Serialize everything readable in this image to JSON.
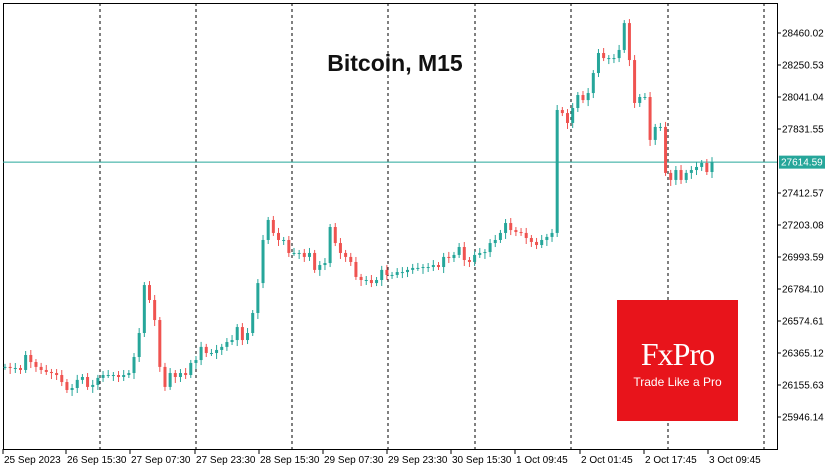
{
  "chart_data": {
    "type": "candlestick",
    "title": "Bitcoin, M15",
    "current_price": "27614.59",
    "y_ticks": [
      "28460.02",
      "28250.53",
      "28041.04",
      "27831.55",
      "27614.59",
      "27412.57",
      "27203.08",
      "26993.59",
      "26784.10",
      "26574.61",
      "26365.12",
      "26155.63",
      "25946.14"
    ],
    "x_ticks": [
      "25 Sep 2023",
      "26 Sep 15:30",
      "27 Sep 07:30",
      "27 Sep 23:30",
      "28 Sep 15:30",
      "29 Sep 07:30",
      "29 Sep 23:30",
      "30 Sep 15:30",
      "1 Oct 09:45",
      "2 Oct 01:45",
      "2 Oct 17:45",
      "3 Oct 09:45"
    ],
    "closes": [
      26274,
      26267,
      26267,
      26254,
      26352,
      26306,
      26274,
      26254,
      26241,
      26234,
      26221,
      26175,
      26123,
      26136,
      26189,
      26208,
      26143,
      26156,
      26202,
      26221,
      26221,
      26221,
      26208,
      26221,
      26234,
      26339,
      26496,
      26810,
      26712,
      26581,
      26274,
      26143,
      26234,
      26208,
      26234,
      26221,
      26300,
      26319,
      26405,
      26365,
      26365,
      26385,
      26405,
      26437,
      26450,
      26535,
      26450,
      26496,
      26627,
      26823,
      27105,
      27236,
      27151,
      27105,
      27105,
      27020,
      27020,
      27020,
      26994,
      27020,
      26909,
      26941,
      26954,
      27190,
      27085,
      27020,
      26994,
      26961,
      26863,
      26843,
      26843,
      26823,
      26843,
      26909,
      26876,
      26876,
      26895,
      26895,
      26909,
      26922,
      26922,
      26928,
      26928,
      26941,
      26928,
      26994,
      26987,
      27007,
      27059,
      26974,
      26961,
      27007,
      27020,
      27026,
      27085,
      27105,
      27151,
      27216,
      27170,
      27157,
      27151,
      27118,
      27092,
      27072,
      27105,
      27125,
      27151,
      27956,
      27936,
      27871,
      27969,
      28054,
      28021,
      28067,
      28198,
      28329,
      28296,
      28296,
      28296,
      28349,
      28525,
      28283,
      28002,
      28041,
      28041,
      27760,
      27845,
      27845,
      27544,
      27498,
      27563,
      27498,
      27544,
      27563,
      27583,
      27609,
      27550,
      27614.59
    ],
    "colors": {
      "up": "#26a69a",
      "down": "#ef5350",
      "price_line": "#26a69a",
      "logo": "#e8141b"
    }
  },
  "logo": {
    "brand": "FxPro",
    "tagline": "Trade Like a Pro"
  }
}
